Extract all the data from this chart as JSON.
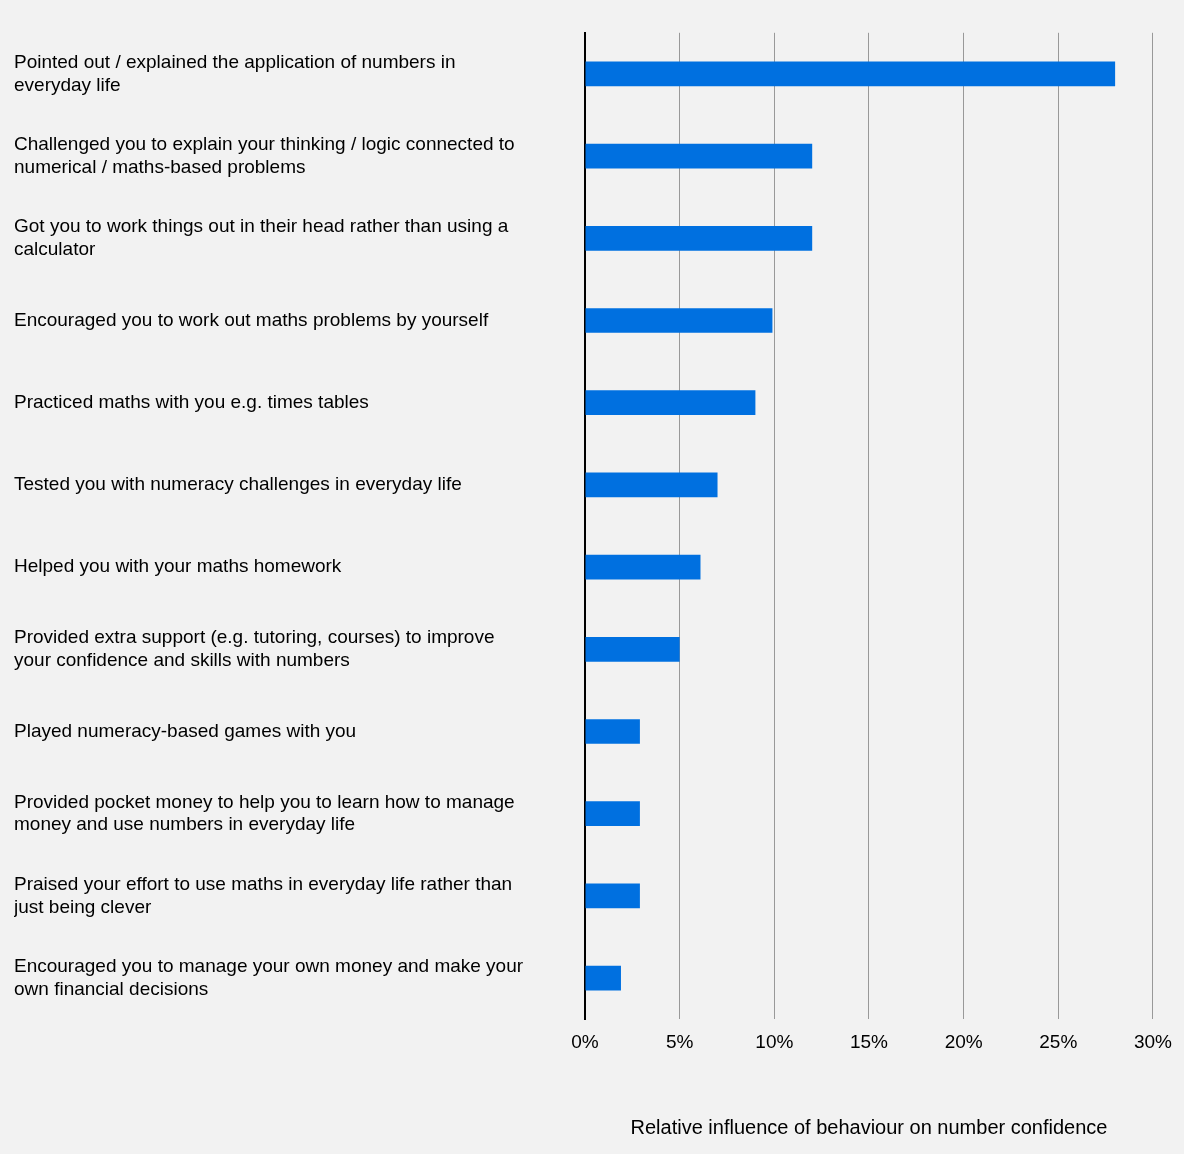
{
  "chart_data": {
    "type": "bar",
    "orientation": "horizontal",
    "categories": [
      "Pointed out / explained the application of numbers in everyday life",
      "Challenged you to explain your thinking / logic connected to numerical / maths-based problems",
      "Got you to work things out in their head rather than using a calculator",
      "Encouraged you to work out maths problems by yourself",
      "Practiced maths with you e.g. times tables",
      "Tested you with numeracy challenges in everyday life",
      "Helped you with your maths homework",
      "Provided extra support (e.g. tutoring, courses) to improve your confidence and skills with numbers",
      "Played numeracy-based games with you",
      "Provided pocket money to help you to learn how to manage money and use numbers in everyday life",
      "Praised your effort to use maths in everyday life rather than just being clever",
      "Encouraged you to manage your own money and make your own financial decisions"
    ],
    "values": [
      28,
      12,
      12,
      9.9,
      9,
      7,
      6.1,
      5,
      2.9,
      2.9,
      2.9,
      1.9
    ],
    "color": "#0070e0",
    "xlabel": "Relative influence of behaviour on number confidence",
    "xlim": [
      0,
      30
    ],
    "xticks": [
      {
        "value": 0,
        "label": "0%"
      },
      {
        "value": 5,
        "label": "5%"
      },
      {
        "value": 10,
        "label": "10%"
      },
      {
        "value": 15,
        "label": "15%"
      },
      {
        "value": 20,
        "label": "20%"
      },
      {
        "value": 25,
        "label": "25%"
      },
      {
        "value": 30,
        "label": "30%"
      }
    ],
    "grid": "x",
    "legend": false
  }
}
